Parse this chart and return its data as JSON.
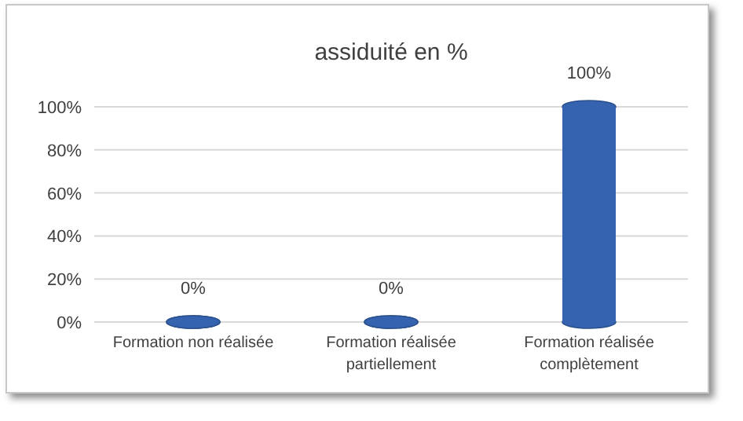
{
  "chart_data": {
    "type": "bar",
    "title": "assiduité en %",
    "categories": [
      "Formation non réalisée",
      "Formation réalisée partiellement",
      "Formation réalisée complètement"
    ],
    "values": [
      0,
      0,
      100
    ],
    "color": "#3563b0",
    "value_labels": [
      "0%",
      "0%",
      "100%"
    ],
    "ylim": [
      0,
      100
    ],
    "yticks": [
      {
        "value": 0,
        "label": "0%"
      },
      {
        "value": 20,
        "label": "20%"
      },
      {
        "value": 40,
        "label": "40%"
      },
      {
        "value": 60,
        "label": "60%"
      },
      {
        "value": 80,
        "label": "80%"
      },
      {
        "value": 100,
        "label": "100%"
      }
    ],
    "grid": true
  }
}
